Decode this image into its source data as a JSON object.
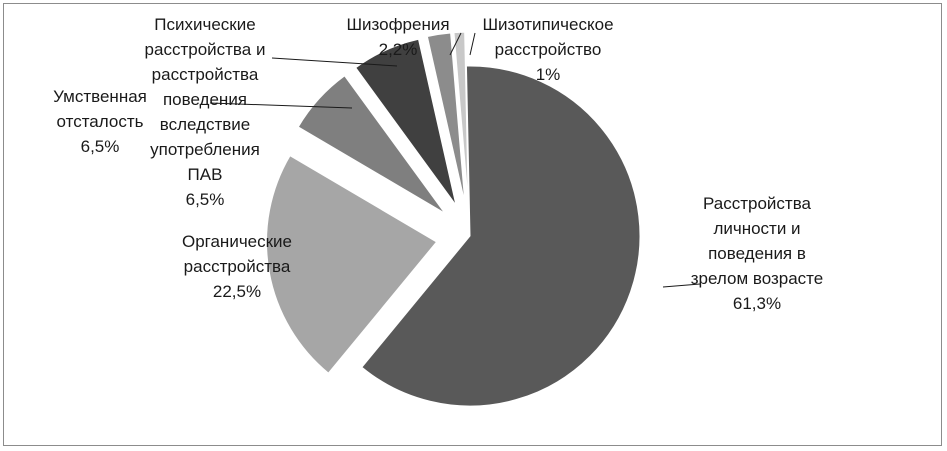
{
  "chart_data": {
    "type": "pie",
    "title": "",
    "exploded": true,
    "legend": "none",
    "slices": [
      {
        "name": "Расстройства личности и поведения в зрелом возрасте",
        "label_lines": [
          "Расстройства",
          "личности и",
          "поведения в",
          "зрелом возрасте"
        ],
        "value_text": "61,3%",
        "value": 61.3,
        "color": "#595959"
      },
      {
        "name": "Органические расстройства",
        "label_lines": [
          "Органические",
          "расстройства"
        ],
        "value_text": "22,5%",
        "value": 22.5,
        "color": "#a6a6a6"
      },
      {
        "name": "Умственная отсталость",
        "label_lines": [
          "Умственная",
          "отсталость"
        ],
        "value_text": "6,5%",
        "value": 6.5,
        "color": "#7f7f7f"
      },
      {
        "name": "Психические расстройства и расстройства поведения вследствие употребления ПАВ",
        "label_lines": [
          "Психические",
          "расстройства и",
          "расстройства",
          "поведения",
          "вследствие",
          "употребления",
          "ПАВ"
        ],
        "value_text": "6,5%",
        "value": 6.5,
        "color": "#404040"
      },
      {
        "name": "Шизофрения",
        "label_lines": [
          "Шизофрения"
        ],
        "value_text": "2,2%",
        "value": 2.2,
        "color": "#8c8c8c"
      },
      {
        "name": "Шизотипическое расстройство",
        "label_lines": [
          "Шизотипическое",
          "расстройство"
        ],
        "value_text": "1%",
        "value": 1.0,
        "color": "#c8c8c8"
      }
    ]
  }
}
